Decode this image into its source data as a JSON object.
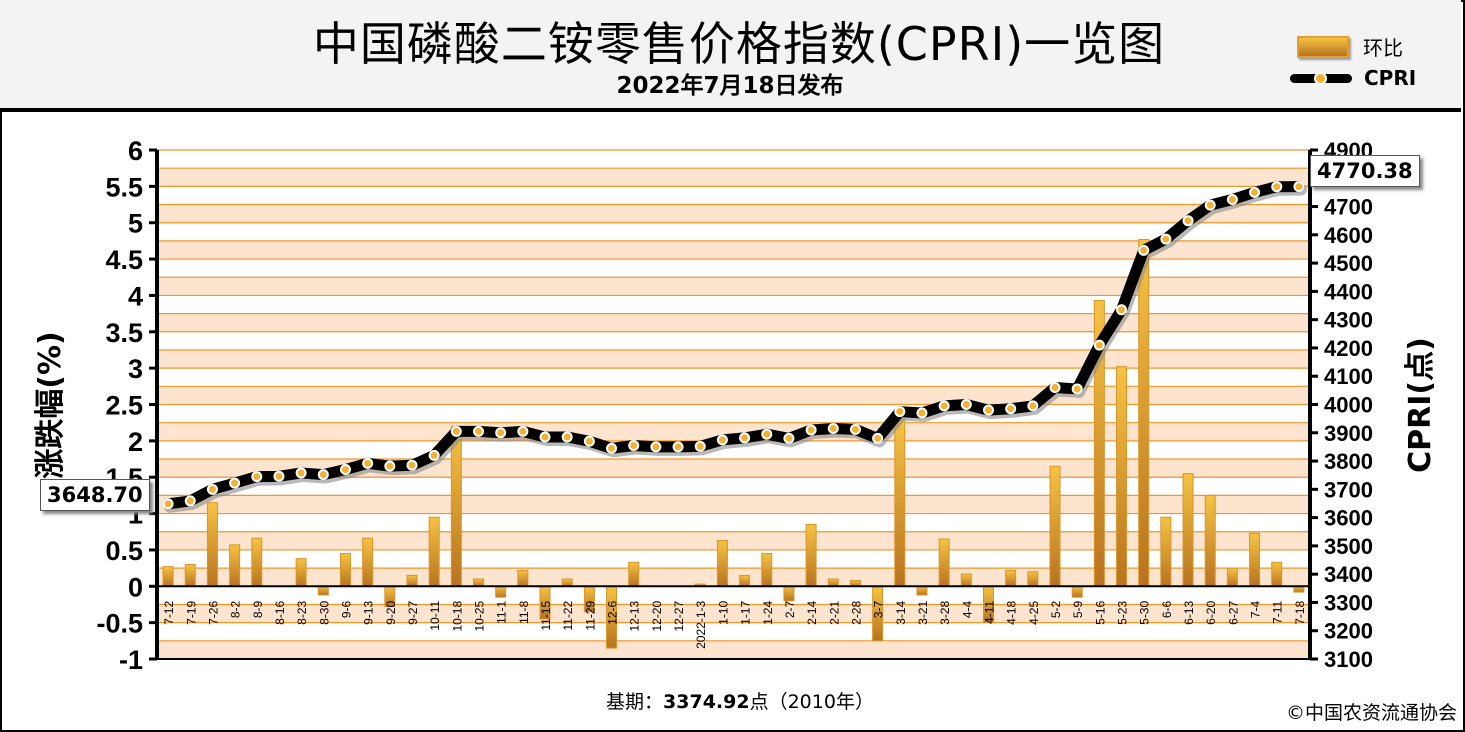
{
  "header": {
    "title": "中国磷酸二铵零售价格指数(CPRI)一览图",
    "subtitle": "2022年7月18日发布"
  },
  "legend": {
    "bar_label": "环比",
    "line_label": "CPRI"
  },
  "footer": {
    "base_prefix": "基期：",
    "base_value": "3374.92",
    "base_suffix": "点（2010年）",
    "copyright": "©中国农资流通协会"
  },
  "callouts": {
    "first_value": "3648.70",
    "last_value": "4770.38"
  },
  "colors": {
    "bar_top": "#f6c343",
    "bar_bottom": "#b8731f",
    "band_light": "#fde4cf",
    "band_white": "#ffffff",
    "grid": "#f0962a",
    "line": "#000000",
    "marker": "#f2b035"
  },
  "chart_data": {
    "type": "bar+line",
    "title": "中国磷酸二铵零售价格指数(CPRI)一览图",
    "ylabel": "涨跌幅(%)",
    "y2label": "CPRI(点)",
    "ylim": [
      -1,
      6
    ],
    "y2lim": [
      3100,
      4900
    ],
    "yticks": [
      "-1",
      "-0.5",
      "0",
      "0.5",
      "1",
      "1.5",
      "2",
      "2.5",
      "3",
      "3.5",
      "4",
      "4.5",
      "5",
      "5.5",
      "6"
    ],
    "y2ticks": [
      "3100",
      "3200",
      "3300",
      "3400",
      "3500",
      "3600",
      "3700",
      "3800",
      "3900",
      "4000",
      "4100",
      "4200",
      "4300",
      "4400",
      "4500",
      "4600",
      "4700",
      "4800",
      "4900"
    ],
    "categories": [
      "7-12",
      "7-19",
      "7-26",
      "8-2",
      "8-9",
      "8-16",
      "8-23",
      "8-30",
      "9-6",
      "9-13",
      "9-20",
      "9-27",
      "10-11",
      "10-18",
      "10-25",
      "11-1",
      "11-8",
      "11-15",
      "11-22",
      "11-29",
      "12-6",
      "12-13",
      "12-20",
      "12-27",
      "2022-1-3",
      "1-10",
      "1-17",
      "1-24",
      "2-7",
      "2-14",
      "2-21",
      "2-28",
      "3-7",
      "3-14",
      "3-21",
      "3-28",
      "4-4",
      "4-11",
      "4-18",
      "4-25",
      "5-2",
      "5-9",
      "5-16",
      "5-23",
      "5-30",
      "6-6",
      "6-13",
      "6-20",
      "6-27",
      "7-4",
      "7-11",
      "7-18"
    ],
    "series": [
      {
        "name": "环比",
        "type": "bar",
        "axis": "left",
        "values": [
          0.27,
          0.3,
          1.15,
          0.57,
          0.66,
          0.0,
          0.38,
          -0.12,
          0.45,
          0.66,
          -0.28,
          0.15,
          0.95,
          2.2,
          0.1,
          -0.15,
          0.22,
          -0.45,
          0.1,
          -0.35,
          -0.85,
          0.33,
          0.0,
          0.0,
          0.03,
          0.63,
          0.15,
          0.45,
          -0.2,
          0.85,
          0.1,
          0.08,
          -0.75,
          2.3,
          -0.12,
          0.65,
          0.17,
          -0.5,
          0.22,
          0.2,
          1.65,
          -0.15,
          3.93,
          3.02,
          4.77,
          0.95,
          1.55,
          1.25,
          0.25,
          0.73,
          0.33,
          -0.08
        ]
      },
      {
        "name": "CPRI",
        "type": "line",
        "axis": "right",
        "values": [
          3648.7,
          3659,
          3700,
          3722,
          3745,
          3746,
          3758,
          3752,
          3770,
          3792,
          3782,
          3785,
          3820,
          3905,
          3905,
          3900,
          3905,
          3885,
          3885,
          3870,
          3845,
          3855,
          3850,
          3850,
          3852,
          3875,
          3882,
          3895,
          3880,
          3910,
          3915,
          3912,
          3880,
          3975,
          3970,
          3995,
          4000,
          3980,
          3985,
          3995,
          4060,
          4055,
          4210,
          4335,
          4545,
          4585,
          4650,
          4705,
          4725,
          4750,
          4770,
          4770.38
        ]
      }
    ],
    "grid": true,
    "legend": "top-right"
  }
}
